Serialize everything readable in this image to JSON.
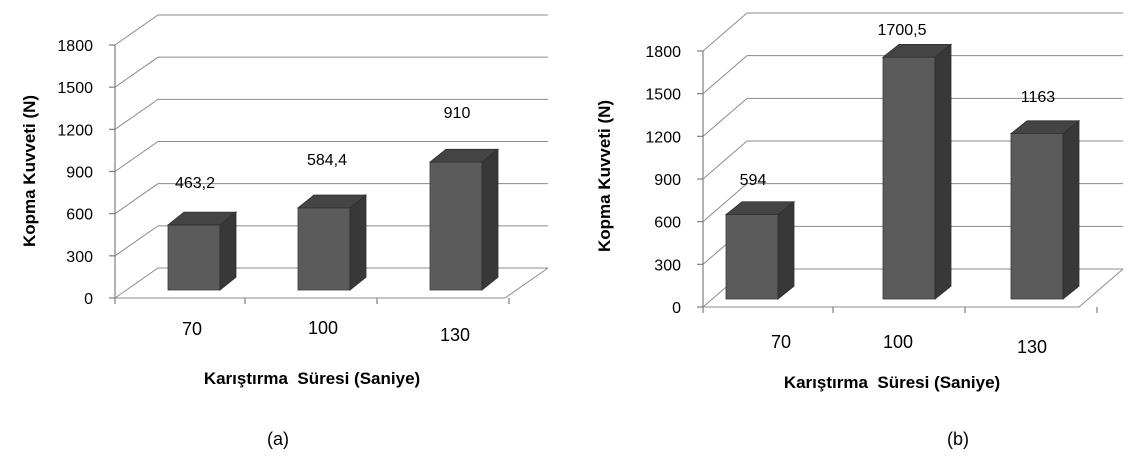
{
  "chart_data": [
    {
      "type": "bar",
      "title": "",
      "xlabel": "Karıştırma  Süresi (Saniye)",
      "ylabel": "Kopma Kuvveti (N)",
      "categories": [
        "70",
        "100",
        "130"
      ],
      "values": [
        463.2,
        584.4,
        910
      ],
      "data_labels": [
        "463,2",
        "584,4",
        "910"
      ],
      "ylim": [
        0,
        1800
      ],
      "yticks": [
        "0",
        "300",
        "600",
        "900",
        "1200",
        "1500",
        "1800"
      ],
      "grid": true,
      "caption": "(a)",
      "bar_color": "#5b5b5b"
    },
    {
      "type": "bar",
      "title": "",
      "xlabel": "Karıştırma  Süresi (Saniye)",
      "ylabel": "Kopma Kuvveti (N)",
      "categories": [
        "70",
        "100",
        "130"
      ],
      "values": [
        594,
        1700.5,
        1163
      ],
      "data_labels": [
        "594",
        "1700,5",
        "1163"
      ],
      "ylim": [
        0,
        1800
      ],
      "yticks": [
        "0",
        "300",
        "600",
        "900",
        "1200",
        "1500",
        "1800"
      ],
      "grid": true,
      "caption": "(b)",
      "bar_color": "#5b5b5b"
    }
  ]
}
